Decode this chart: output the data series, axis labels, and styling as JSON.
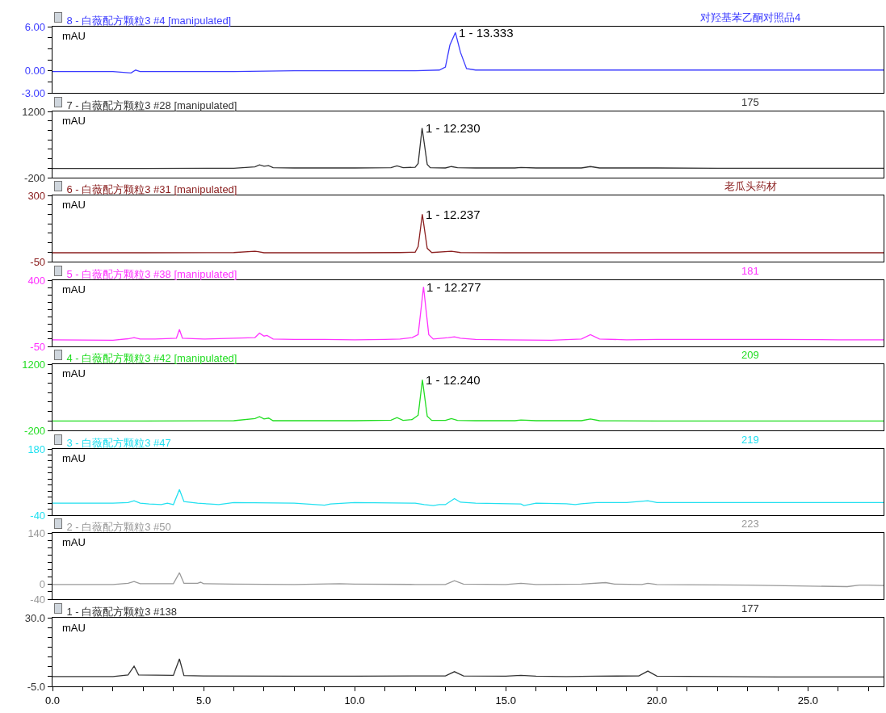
{
  "chart_data": [
    {
      "type": "line",
      "title": "8 - 白薇配方颗粒3 #4 [manipulated]",
      "subtitle": "对羟基苯乙酮对照品4",
      "ylabel": "mAU",
      "xlim": [
        0,
        27.5
      ],
      "ylim": [
        -3,
        6
      ],
      "yticks": [
        {
          "value": 6,
          "label": "6.00"
        },
        {
          "value": 4.5,
          "label": null
        },
        {
          "value": 3,
          "label": null
        },
        {
          "value": 1.5,
          "label": null
        },
        {
          "value": 0,
          "label": "0.00"
        },
        {
          "value": -1.5,
          "label": null
        },
        {
          "value": -3,
          "label": "-3.00"
        }
      ],
      "tick_labels": "y",
      "annotations": [
        {
          "text": "1 - 13.333",
          "x": 13.333,
          "y": 5.2
        }
      ],
      "series": [
        {
          "color": "#3b3bff",
          "x": [
            0,
            2,
            2.6,
            2.75,
            2.9,
            4,
            6,
            8,
            10,
            12,
            12.8,
            13.0,
            13.15,
            13.333,
            13.5,
            13.7,
            14,
            16,
            18,
            20,
            22,
            24,
            26,
            27.5
          ],
          "values": [
            -0.1,
            -0.1,
            -0.3,
            0.1,
            -0.1,
            -0.1,
            -0.1,
            0,
            0,
            0,
            0.1,
            0.5,
            3.5,
            5.2,
            2.5,
            0.3,
            0.1,
            0.1,
            0.1,
            0.1,
            0.1,
            0.1,
            0.1,
            0.1
          ]
        }
      ]
    },
    {
      "type": "line",
      "title": "7 - 白薇配方颗粒3 #28 [manipulated]",
      "subtitle": "175",
      "ylabel": "mAU",
      "xlim": [
        0,
        27.5
      ],
      "ylim": [
        -200,
        1200
      ],
      "yticks": [
        1200,
        {
          "value": 1000,
          "label": null
        },
        {
          "value": 800,
          "label": null
        },
        {
          "value": 600,
          "label": null
        },
        {
          "value": 400,
          "label": null
        },
        {
          "value": 200,
          "label": null
        },
        {
          "value": 0,
          "label": null
        },
        -200
      ],
      "tick_labels": "y",
      "annotations": [
        {
          "text": "1 - 12.230",
          "x": 12.23,
          "y": 850
        }
      ],
      "series": [
        {
          "color": "#333333",
          "x": [
            0,
            3,
            6,
            6.7,
            6.85,
            7.0,
            7.15,
            7.3,
            8,
            10,
            11.2,
            11.4,
            11.6,
            12.0,
            12.1,
            12.23,
            12.4,
            12.5,
            13.0,
            13.2,
            13.4,
            14,
            15.3,
            15.5,
            16,
            17.5,
            17.8,
            18.1,
            19,
            20,
            22,
            24,
            26,
            27.5
          ],
          "values": [
            -5,
            -5,
            0,
            30,
            70,
            40,
            55,
            10,
            5,
            5,
            10,
            50,
            10,
            20,
            100,
            850,
            80,
            10,
            5,
            35,
            10,
            5,
            5,
            15,
            5,
            5,
            35,
            5,
            5,
            5,
            0,
            0,
            0,
            0
          ]
        }
      ]
    },
    {
      "type": "line",
      "title": "6 - 白薇配方颗粒3 #31 [manipulated]",
      "subtitle": "老瓜头药材",
      "ylabel": "mAU",
      "xlim": [
        0,
        27.5
      ],
      "ylim": [
        -50,
        300
      ],
      "yticks": [
        300,
        {
          "value": 250,
          "label": null
        },
        {
          "value": 200,
          "label": null
        },
        {
          "value": 150,
          "label": null
        },
        {
          "value": 100,
          "label": null
        },
        {
          "value": 50,
          "label": null
        },
        {
          "value": 0,
          "label": null
        },
        -50
      ],
      "tick_labels": "y",
      "annotations": [
        {
          "text": "1 - 12.237",
          "x": 12.237,
          "y": 200
        }
      ],
      "series": [
        {
          "color": "#8b2020",
          "x": [
            0,
            3,
            6,
            6.7,
            6.8,
            7,
            8,
            10,
            11.5,
            12.0,
            12.1,
            12.237,
            12.4,
            12.55,
            13.2,
            13.5,
            15,
            17,
            20,
            24,
            27.5
          ],
          "values": [
            -3,
            -3,
            -2,
            5,
            3,
            -3,
            -3,
            -3,
            -2,
            0,
            30,
            200,
            20,
            -2,
            5,
            -2,
            -3,
            -3,
            -3,
            -3,
            -3
          ]
        }
      ]
    },
    {
      "type": "line",
      "title": "5 - 白薇配方颗粒3 #38 [manipulated]",
      "subtitle": "181",
      "ylabel": "mAU",
      "xlim": [
        0,
        27.5
      ],
      "ylim": [
        -50,
        400
      ],
      "yticks": [
        400,
        {
          "value": 350,
          "label": null
        },
        {
          "value": 300,
          "label": null
        },
        {
          "value": 250,
          "label": null
        },
        {
          "value": 200,
          "label": null
        },
        {
          "value": 150,
          "label": null
        },
        {
          "value": 100,
          "label": null
        },
        {
          "value": 50,
          "label": null
        },
        {
          "value": 0,
          "label": null
        },
        -50
      ],
      "tick_labels": "y",
      "annotations": [
        {
          "text": "1 - 12.277",
          "x": 12.277,
          "y": 355
        }
      ],
      "series": [
        {
          "color": "#ff33ff",
          "x": [
            0,
            2,
            2.5,
            2.7,
            2.9,
            3.4,
            4.1,
            4.2,
            4.3,
            5,
            6.7,
            6.85,
            7.0,
            7.1,
            7.3,
            8,
            9,
            10,
            11,
            11.5,
            11.9,
            12.1,
            12.277,
            12.45,
            12.6,
            13.1,
            13.3,
            13.5,
            14,
            15,
            16.5,
            17.5,
            17.8,
            18.1,
            19,
            20,
            22,
            24,
            26,
            27.5
          ],
          "values": [
            -5,
            -8,
            2,
            10,
            0,
            0,
            5,
            65,
            5,
            0,
            10,
            40,
            20,
            25,
            0,
            -3,
            -3,
            -5,
            -3,
            0,
            10,
            30,
            355,
            30,
            0,
            10,
            15,
            5,
            -3,
            -5,
            -8,
            0,
            30,
            0,
            -5,
            -3,
            -3,
            -3,
            -5,
            -5
          ]
        }
      ]
    },
    {
      "type": "line",
      "title": "4 - 白薇配方颗粒3 #42 [manipulated]",
      "subtitle": "209",
      "ylabel": "mAU",
      "xlim": [
        0,
        27.5
      ],
      "ylim": [
        -200,
        1200
      ],
      "yticks": [
        1200,
        {
          "value": 1000,
          "label": null
        },
        {
          "value": 800,
          "label": null
        },
        {
          "value": 600,
          "label": null
        },
        {
          "value": 400,
          "label": null
        },
        {
          "value": 200,
          "label": null
        },
        {
          "value": 0,
          "label": null
        },
        -200
      ],
      "tick_labels": "y",
      "annotations": [
        {
          "text": "1 - 12.240",
          "x": 12.24,
          "y": 870
        }
      ],
      "series": [
        {
          "color": "#22dd22",
          "x": [
            0,
            3,
            6,
            6.7,
            6.85,
            7.0,
            7.15,
            7.3,
            8,
            10,
            11.2,
            11.4,
            11.6,
            11.9,
            12.1,
            12.24,
            12.4,
            12.55,
            13.0,
            13.2,
            13.4,
            14,
            15.3,
            15.5,
            16,
            17.5,
            17.8,
            18.1,
            20,
            24,
            27.5
          ],
          "values": [
            0,
            0,
            5,
            50,
            90,
            40,
            60,
            5,
            5,
            5,
            15,
            70,
            10,
            30,
            120,
            870,
            100,
            10,
            10,
            50,
            10,
            5,
            5,
            20,
            5,
            5,
            40,
            5,
            0,
            0,
            0
          ]
        }
      ]
    },
    {
      "type": "line",
      "title": "3 - 白薇配方颗粒3 #47",
      "subtitle": "219",
      "ylabel": "mAU",
      "xlim": [
        0,
        27.5
      ],
      "ylim": [
        -40,
        180
      ],
      "yticks": [
        180,
        {
          "value": 160,
          "label": null
        },
        {
          "value": 140,
          "label": null
        },
        {
          "value": 120,
          "label": null
        },
        {
          "value": 100,
          "label": null
        },
        {
          "value": 80,
          "label": null
        },
        {
          "value": 60,
          "label": null
        },
        {
          "value": 40,
          "label": null
        },
        {
          "value": 20,
          "label": null
        },
        {
          "value": 0,
          "label": null
        },
        {
          "value": -20,
          "label": null
        },
        -40
      ],
      "tick_labels": "y",
      "series": [
        {
          "color": "#22e0f0",
          "x": [
            0,
            2,
            2.5,
            2.7,
            2.9,
            3.2,
            3.6,
            3.8,
            4.0,
            4.2,
            4.35,
            4.8,
            5.2,
            5.5,
            6,
            8,
            9.0,
            9.2,
            10,
            12,
            12.3,
            12.6,
            12.8,
            13.0,
            13.3,
            13.5,
            14,
            15.5,
            15.6,
            16,
            17,
            17.3,
            17.5,
            18,
            19,
            19.7,
            20,
            22,
            24,
            27.5
          ],
          "values": [
            0,
            0,
            2,
            8,
            0,
            -3,
            -5,
            0,
            -5,
            45,
            5,
            0,
            -3,
            -5,
            2,
            0,
            -7,
            -3,
            2,
            0,
            -5,
            -8,
            -5,
            -5,
            15,
            3,
            0,
            -3,
            -8,
            0,
            -2,
            -5,
            -2,
            2,
            2,
            8,
            2,
            2,
            2,
            2
          ]
        }
      ]
    },
    {
      "type": "line",
      "title": "2 - 白薇配方颗粒3 #50",
      "subtitle": "223",
      "ylabel": "mAU",
      "xlim": [
        0,
        27.5
      ],
      "ylim": [
        -40,
        140
      ],
      "yticks": [
        140,
        {
          "value": 120,
          "label": null
        },
        {
          "value": 100,
          "label": null
        },
        {
          "value": 80,
          "label": null
        },
        {
          "value": 60,
          "label": null
        },
        {
          "value": 40,
          "label": null
        },
        {
          "value": 20,
          "label": null
        },
        0,
        {
          "value": -20,
          "label": null
        },
        -40
      ],
      "tick_labels": "y",
      "series": [
        {
          "color": "#999999",
          "x": [
            0,
            2,
            2.5,
            2.7,
            2.9,
            4.0,
            4.2,
            4.35,
            4.8,
            4.9,
            5.0,
            6,
            8,
            9.5,
            10,
            12,
            13.0,
            13.3,
            13.6,
            15,
            15.5,
            16,
            17.5,
            18.3,
            18.6,
            19.5,
            19.7,
            20,
            23,
            26.3,
            26.7,
            27,
            27.5
          ],
          "values": [
            0,
            0,
            3,
            8,
            2,
            2,
            32,
            3,
            3,
            6,
            2,
            1,
            0,
            2,
            1,
            0,
            0,
            10,
            1,
            0,
            3,
            0,
            1,
            5,
            1,
            0,
            3,
            0,
            -2,
            -6,
            -2,
            -2,
            -3
          ]
        }
      ]
    },
    {
      "type": "line",
      "title": "1 - 白薇配方颗粒3 #138",
      "subtitle": "177",
      "ylabel": "mAU",
      "xlim": [
        0,
        27.5
      ],
      "xticks": [
        {
          "value": 0,
          "label": "0.0"
        },
        {
          "value": 1,
          "label": null
        },
        {
          "value": 2,
          "label": null
        },
        {
          "value": 3,
          "label": null
        },
        {
          "value": 4,
          "label": null
        },
        {
          "value": 5,
          "label": "5.0"
        },
        {
          "value": 6,
          "label": null
        },
        {
          "value": 7,
          "label": null
        },
        {
          "value": 8,
          "label": null
        },
        {
          "value": 9,
          "label": null
        },
        {
          "value": 10,
          "label": "10.0"
        },
        {
          "value": 11,
          "label": null
        },
        {
          "value": 12,
          "label": null
        },
        {
          "value": 13,
          "label": null
        },
        {
          "value": 14,
          "label": null
        },
        {
          "value": 15,
          "label": "15.0"
        },
        {
          "value": 16,
          "label": null
        },
        {
          "value": 17,
          "label": null
        },
        {
          "value": 18,
          "label": null
        },
        {
          "value": 19,
          "label": null
        },
        {
          "value": 20,
          "label": "20.0"
        },
        {
          "value": 21,
          "label": null
        },
        {
          "value": 22,
          "label": null
        },
        {
          "value": 23,
          "label": null
        },
        {
          "value": 24,
          "label": null
        },
        {
          "value": 25,
          "label": "25.0"
        },
        {
          "value": 26,
          "label": null
        },
        {
          "value": 27,
          "label": null
        }
      ],
      "ylim": [
        -5,
        30
      ],
      "yticks": [
        {
          "value": 30,
          "label": "30.0"
        },
        {
          "value": 25,
          "label": null
        },
        {
          "value": 20,
          "label": null
        },
        {
          "value": 15,
          "label": null
        },
        {
          "value": 10,
          "label": null
        },
        {
          "value": 5,
          "label": null
        },
        {
          "value": 0,
          "label": null
        },
        {
          "value": -5,
          "label": "-5.0"
        }
      ],
      "series": [
        {
          "color": "#333333",
          "x": [
            0,
            2,
            2.5,
            2.7,
            2.85,
            4.0,
            4.2,
            4.35,
            5,
            8,
            10,
            13.0,
            13.3,
            13.6,
            15,
            15.5,
            16,
            17,
            18,
            19.4,
            19.7,
            20,
            22,
            24,
            27.5
          ],
          "values": [
            0,
            0,
            0.8,
            5.3,
            0.8,
            0.6,
            9,
            0.5,
            0.3,
            0.2,
            0.2,
            0.3,
            2.5,
            0.3,
            0.2,
            0.6,
            0.2,
            0,
            0.2,
            0.3,
            2.8,
            0.2,
            0,
            -0.2,
            -0.2
          ]
        }
      ]
    }
  ]
}
